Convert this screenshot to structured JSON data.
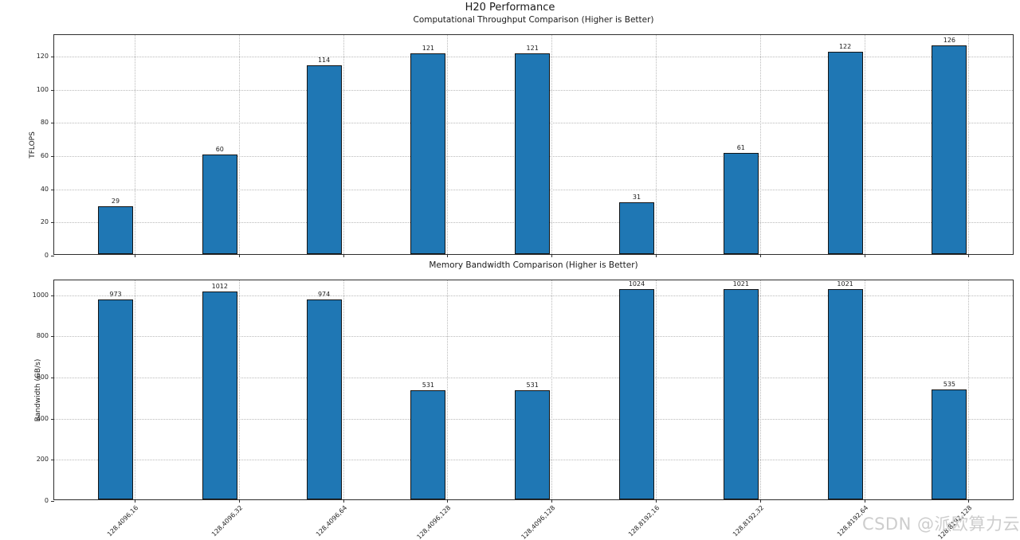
{
  "figure": {
    "title": "H20 Performance",
    "watermark": "CSDN @派欧算力云"
  },
  "colors": {
    "bar_fill": "#1f77b4",
    "bar_edge": "#141414",
    "grid": "#bababa",
    "spine": "#2e2e2e",
    "text": "#1a1a1a",
    "watermark": "#cdcdcd"
  },
  "chart_data": [
    {
      "type": "bar",
      "title": "Computational Throughput Comparison (Higher is Better)",
      "xlabel": "",
      "ylabel": "TFLOPS",
      "categories": [
        "128,4096,16",
        "128,4096,32",
        "128,4096,64",
        "128,4096,128",
        "128,4096,128",
        "128,8192,16",
        "128,8192,32",
        "128,8192,64",
        "128,8192,128"
      ],
      "values": [
        29,
        60,
        114,
        121,
        121,
        31,
        61,
        122,
        126
      ],
      "yticks": [
        0,
        20,
        40,
        60,
        80,
        100,
        120
      ],
      "ylim": [
        0,
        133
      ],
      "grid": true,
      "grid_style": "dotted",
      "show_x_labels": false,
      "legend": null
    },
    {
      "type": "bar",
      "title": "Memory Bandwidth Comparison (Higher is Better)",
      "xlabel": "",
      "ylabel": "Bandwidth (GB/s)",
      "categories": [
        "128,4096,16",
        "128,4096,32",
        "128,4096,64",
        "128,4096,128",
        "128,4096,128",
        "128,8192,16",
        "128,8192,32",
        "128,8192,64",
        "128,8192,128"
      ],
      "values": [
        973,
        1012,
        974,
        531,
        531,
        1024,
        1021,
        1021,
        535
      ],
      "yticks": [
        0,
        200,
        400,
        600,
        800,
        1000
      ],
      "ylim": [
        0,
        1073
      ],
      "grid": true,
      "grid_style": "dotted",
      "show_x_labels": true,
      "legend": null
    }
  ]
}
